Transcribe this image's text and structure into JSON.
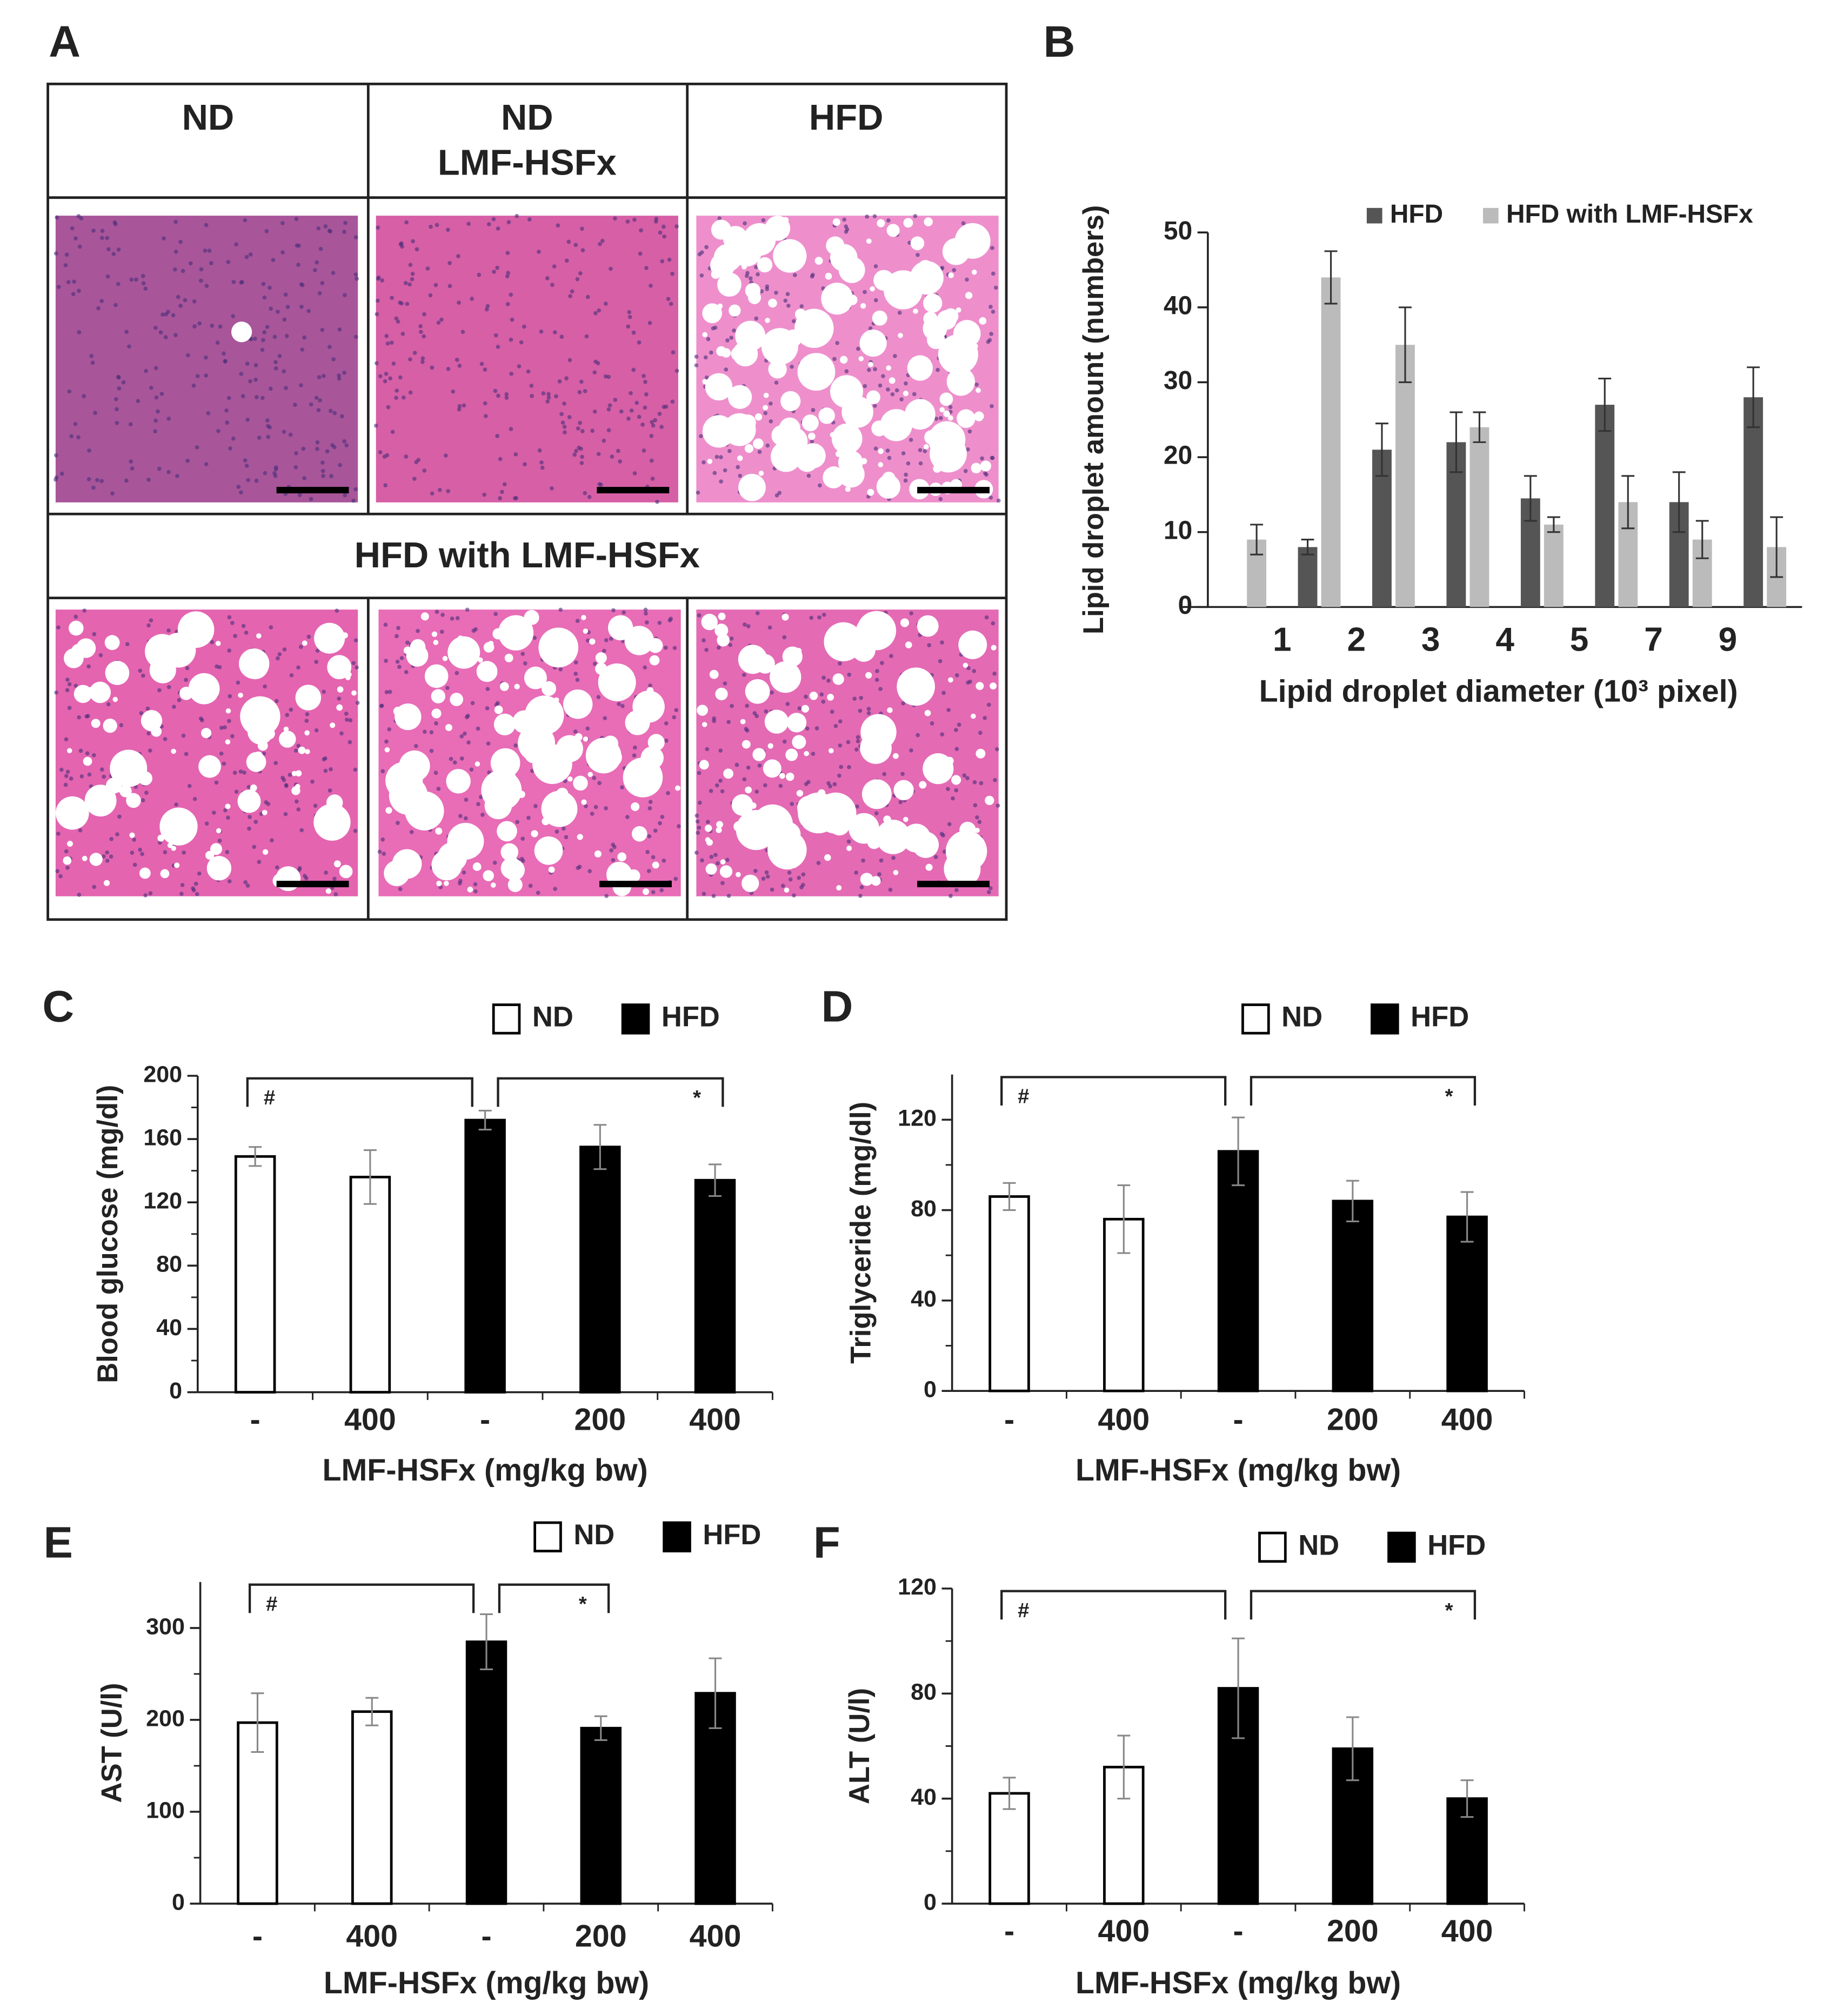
{
  "panel_a": {
    "label": "A",
    "column_titles": [
      [
        "ND"
      ],
      [
        "ND",
        "LMF-HSFx"
      ],
      [
        "HFD"
      ]
    ],
    "row_title": "HFD with LMF-HSFx"
  },
  "chart_data": [
    {
      "type": "bar",
      "panel_label": "B",
      "y_label": "Lipid droplet amount (numbers)",
      "x_label": "Lipid droplet diameter (10³ pixel)",
      "categories": [
        "1",
        "2",
        "3",
        "4",
        "5",
        "7",
        "9",
        null
      ],
      "series": [
        {
          "name": "HFD",
          "color": "#555555",
          "values": [
            null,
            8,
            21,
            22,
            14.5,
            27,
            14,
            28
          ],
          "errors": [
            null,
            1,
            3.5,
            4,
            3,
            3.5,
            4,
            4
          ]
        },
        {
          "name": "HFD with LMF-HSFx",
          "color": "#bbbbbb",
          "values": [
            9,
            44,
            35,
            24,
            11,
            14,
            9,
            8
          ],
          "errors": [
            2,
            3.5,
            5,
            2,
            1,
            3.5,
            2.5,
            4
          ]
        }
      ],
      "ylim": [
        0,
        50
      ],
      "yticks": [
        0,
        10,
        20,
        30,
        40,
        50
      ],
      "legend": "top-right"
    },
    {
      "type": "bar",
      "panel_label": "C",
      "y_label": "Blood glucose (mg/dl)",
      "x_label": "LMF-HSFx (mg/kg bw)",
      "categories": [
        "-",
        "400",
        "-",
        "200",
        "400"
      ],
      "series": [
        {
          "name": "ND",
          "color": "#ffffff",
          "values": [
            149,
            136,
            null,
            null,
            null
          ],
          "errors": [
            6,
            17,
            null,
            null,
            null
          ]
        },
        {
          "name": "HFD",
          "color": "#000000",
          "values": [
            null,
            null,
            172,
            155,
            134
          ],
          "errors": [
            null,
            null,
            6,
            14,
            10
          ]
        }
      ],
      "ylim": [
        0,
        200
      ],
      "yticks": [
        0,
        40,
        80,
        120,
        160,
        200
      ],
      "annotations": [
        {
          "text": "#",
          "from": 0,
          "to": 2
        },
        {
          "text": "*",
          "from": 2,
          "to": 4
        }
      ],
      "legend": "top-right"
    },
    {
      "type": "bar",
      "panel_label": "D",
      "y_label": "Triglyceride (mg/dl)",
      "x_label": "LMF-HSFx (mg/kg bw)",
      "categories": [
        "-",
        "400",
        "-",
        "200",
        "400"
      ],
      "series": [
        {
          "name": "ND",
          "color": "#ffffff",
          "values": [
            86,
            76,
            null,
            null,
            null
          ],
          "errors": [
            6,
            15,
            null,
            null,
            null
          ]
        },
        {
          "name": "HFD",
          "color": "#000000",
          "values": [
            null,
            null,
            106,
            84,
            77
          ],
          "errors": [
            null,
            null,
            15,
            9,
            11
          ]
        }
      ],
      "ylim": [
        0,
        140
      ],
      "yticks": [
        0,
        40,
        80,
        120
      ],
      "annotations": [
        {
          "text": "#",
          "from": 0,
          "to": 2
        },
        {
          "text": "*",
          "from": 2,
          "to": 4
        }
      ],
      "legend": "top-right"
    },
    {
      "type": "bar",
      "panel_label": "E",
      "y_label": "AST (U/l)",
      "x_label": "LMF-HSFx (mg/kg bw)",
      "categories": [
        "-",
        "400",
        "-",
        "200",
        "400"
      ],
      "series": [
        {
          "name": "ND",
          "color": "#ffffff",
          "values": [
            197,
            209,
            null,
            null,
            null
          ],
          "errors": [
            32,
            15,
            null,
            null,
            null
          ]
        },
        {
          "name": "HFD",
          "color": "#000000",
          "values": [
            null,
            null,
            285,
            191,
            229
          ],
          "errors": [
            null,
            null,
            30,
            13,
            38
          ]
        }
      ],
      "ylim": [
        0,
        350
      ],
      "yticks": [
        0,
        100,
        200,
        300
      ],
      "annotations": [
        {
          "text": "#",
          "from": 0,
          "to": 2
        },
        {
          "text": "*",
          "from": 2,
          "to": 3
        }
      ],
      "legend": "top-right"
    },
    {
      "type": "bar",
      "panel_label": "F",
      "y_label": "ALT (U/l)",
      "x_label": "LMF-HSFx (mg/kg bw)",
      "categories": [
        "-",
        "400",
        "-",
        "200",
        "400"
      ],
      "series": [
        {
          "name": "ND",
          "color": "#ffffff",
          "values": [
            42,
            52,
            null,
            null,
            null
          ],
          "errors": [
            6,
            12,
            null,
            null,
            null
          ]
        },
        {
          "name": "HFD",
          "color": "#000000",
          "values": [
            null,
            null,
            82,
            59,
            40
          ],
          "errors": [
            null,
            null,
            19,
            12,
            7
          ]
        }
      ],
      "ylim": [
        0,
        120
      ],
      "yticks": [
        0,
        40,
        80,
        120
      ],
      "annotations": [
        {
          "text": "#",
          "from": 0,
          "to": 2
        },
        {
          "text": "*",
          "from": 2,
          "to": 4
        }
      ],
      "legend": "top-right"
    }
  ]
}
